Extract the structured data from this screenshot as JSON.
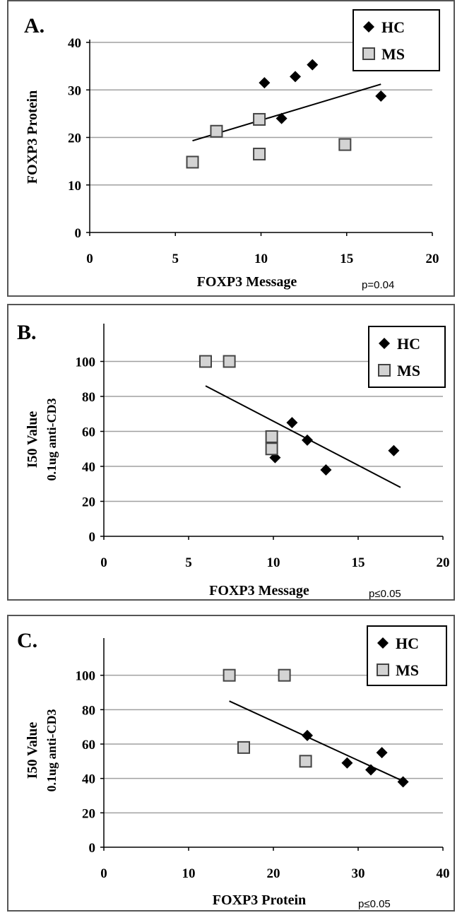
{
  "colors": {
    "ms_fill": "#d3d3d3",
    "hc_fill": "#000000",
    "grid": "#a0a0a0",
    "trend": "#000000"
  },
  "chart_data": [
    {
      "type": "scatter",
      "panel_label": "A.",
      "xlabel": "FOXP3 Message",
      "ylabel": "FOXP3 Protein",
      "ylabel2": "",
      "pvalue": "p=0.04",
      "xlim": [
        0,
        20
      ],
      "ylim": [
        0,
        40
      ],
      "xticks": [
        0,
        5,
        10,
        15,
        20
      ],
      "yticks": [
        0,
        10,
        20,
        30,
        40
      ],
      "grid": "horizontal",
      "legend": "top-right",
      "series": [
        {
          "name": "HC",
          "marker": "diamond",
          "points": [
            [
              10.2,
              31.5
            ],
            [
              12.0,
              32.8
            ],
            [
              13.0,
              35.3
            ],
            [
              11.2,
              24.0
            ],
            [
              17.0,
              28.7
            ]
          ]
        },
        {
          "name": "MS",
          "marker": "square",
          "points": [
            [
              6.0,
              14.8
            ],
            [
              7.4,
              21.3
            ],
            [
              9.9,
              23.8
            ],
            [
              9.9,
              16.5
            ],
            [
              14.9,
              18.5
            ]
          ]
        }
      ],
      "trendline": [
        [
          6.0,
          19.3
        ],
        [
          17.0,
          31.2
        ]
      ]
    },
    {
      "type": "scatter",
      "panel_label": "B.",
      "xlabel": "FOXP3 Message",
      "ylabel": "I50 Value",
      "ylabel2": "0.1ug anti-CD3",
      "pvalue": "p≤0.05",
      "xlim": [
        0,
        20
      ],
      "ylim": [
        0,
        120
      ],
      "xticks": [
        0,
        5,
        10,
        15,
        20
      ],
      "yticks": [
        0,
        20,
        40,
        60,
        80,
        100
      ],
      "grid": "horizontal",
      "legend": "top-right",
      "series": [
        {
          "name": "HC",
          "marker": "diamond",
          "points": [
            [
              11.1,
              65
            ],
            [
              12.0,
              55
            ],
            [
              10.1,
              45
            ],
            [
              13.1,
              38
            ],
            [
              17.1,
              49
            ]
          ]
        },
        {
          "name": "MS",
          "marker": "square",
          "points": [
            [
              6.0,
              100
            ],
            [
              7.4,
              100
            ],
            [
              9.9,
              57
            ],
            [
              9.9,
              50
            ]
          ]
        }
      ],
      "trendline": [
        [
          6.0,
          86
        ],
        [
          17.5,
          28
        ]
      ]
    },
    {
      "type": "scatter",
      "panel_label": "C.",
      "xlabel": "FOXP3 Protein",
      "ylabel": "I50 Value",
      "ylabel2": "0.1ug anti-CD3",
      "pvalue": "p≤0.05",
      "xlim": [
        0,
        40
      ],
      "ylim": [
        0,
        120
      ],
      "xticks": [
        0,
        10,
        20,
        30,
        40
      ],
      "yticks": [
        0,
        20,
        40,
        60,
        80,
        100
      ],
      "grid": "horizontal",
      "legend": "top-right",
      "series": [
        {
          "name": "HC",
          "marker": "diamond",
          "points": [
            [
              24.0,
              65
            ],
            [
              28.7,
              49
            ],
            [
              31.5,
              45
            ],
            [
              32.8,
              55
            ],
            [
              35.3,
              38
            ]
          ]
        },
        {
          "name": "MS",
          "marker": "square",
          "points": [
            [
              14.8,
              100
            ],
            [
              21.3,
              100
            ],
            [
              16.5,
              58
            ],
            [
              23.8,
              50
            ]
          ]
        }
      ],
      "trendline": [
        [
          14.8,
          85
        ],
        [
          35.5,
          38
        ]
      ]
    }
  ]
}
